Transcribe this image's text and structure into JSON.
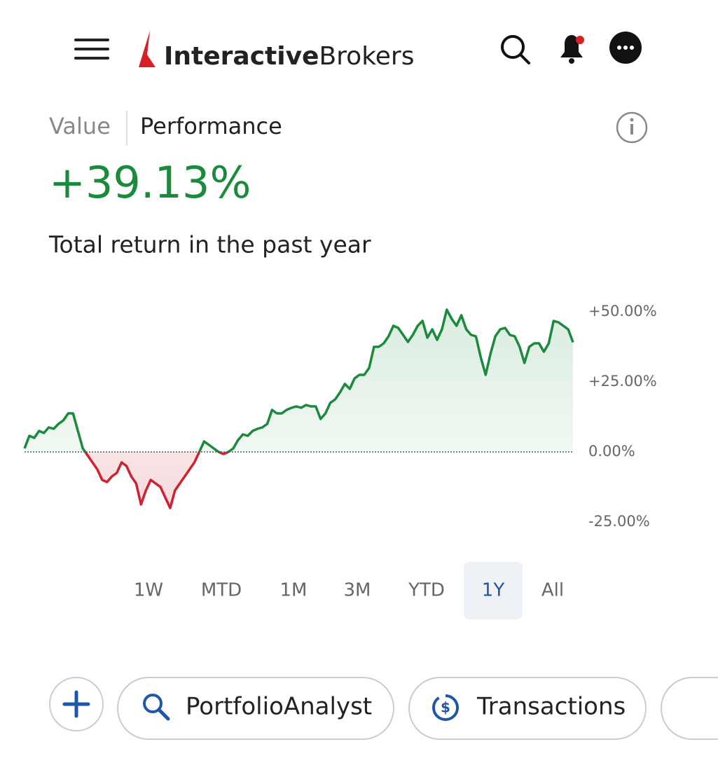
{
  "header": {
    "brand_bold": "Interactive",
    "brand_regular": "Brokers"
  },
  "tabs": {
    "items": [
      "Value",
      "Performance"
    ],
    "active": 1
  },
  "summary": {
    "value": "+39.13%",
    "caption": "Total return in the past year"
  },
  "chart_data": {
    "type": "line",
    "values": [
      1.25,
      5.75,
      5,
      7.5,
      6.75,
      8.75,
      8.25,
      10,
      11.25,
      13.75,
      13.75,
      7.5,
      1.25,
      -1.25,
      -3.75,
      -6.25,
      -10,
      -10.75,
      -8.75,
      -7.5,
      -3.75,
      -5,
      -8.75,
      -11.25,
      -18.75,
      -13.75,
      -10,
      -11.25,
      -12.5,
      -16.25,
      -20,
      -13.75,
      -11.25,
      -8.75,
      -6.25,
      -3.75,
      0,
      3.75,
      2.5,
      1.25,
      0,
      -0.75,
      0,
      1.25,
      4.25,
      6.25,
      5.75,
      7.5,
      8.25,
      8.75,
      10,
      15,
      13.75,
      13.75,
      15,
      15.75,
      16.25,
      15.75,
      16.75,
      16.25,
      16.25,
      11.75,
      13.75,
      17.5,
      18.75,
      21.25,
      24.25,
      22.5,
      26.25,
      27.5,
      27.5,
      30,
      37.5,
      37.5,
      38.75,
      41.25,
      45,
      44.25,
      41.75,
      39.25,
      41.75,
      45,
      46.75,
      40.75,
      43.75,
      40,
      43.75,
      50.75,
      47.5,
      45,
      48.75,
      43.75,
      41.75,
      41.25,
      33.75,
      27.5,
      35,
      41.25,
      43.75,
      44.25,
      41.75,
      41.25,
      37.5,
      31.75,
      37.5,
      38.75,
      38.75,
      35.75,
      38.75,
      46.75,
      46.25,
      45,
      43.75,
      39.13
    ],
    "ylim": [
      -30,
      55
    ],
    "yticks": [
      {
        "value": 50,
        "label": "+50.00%"
      },
      {
        "value": 25,
        "label": "+25.00%"
      },
      {
        "value": 0,
        "label": "0.00%"
      },
      {
        "value": -25,
        "label": "-25.00%"
      }
    ],
    "color": "#1b8a3c",
    "negative_color": "#d0212f"
  },
  "periods": {
    "items": [
      "1W",
      "MTD",
      "1M",
      "3M",
      "YTD",
      "1Y",
      "All"
    ],
    "selected": 5
  },
  "actions": [
    "PortfolioAnalyst",
    "Transactions"
  ]
}
